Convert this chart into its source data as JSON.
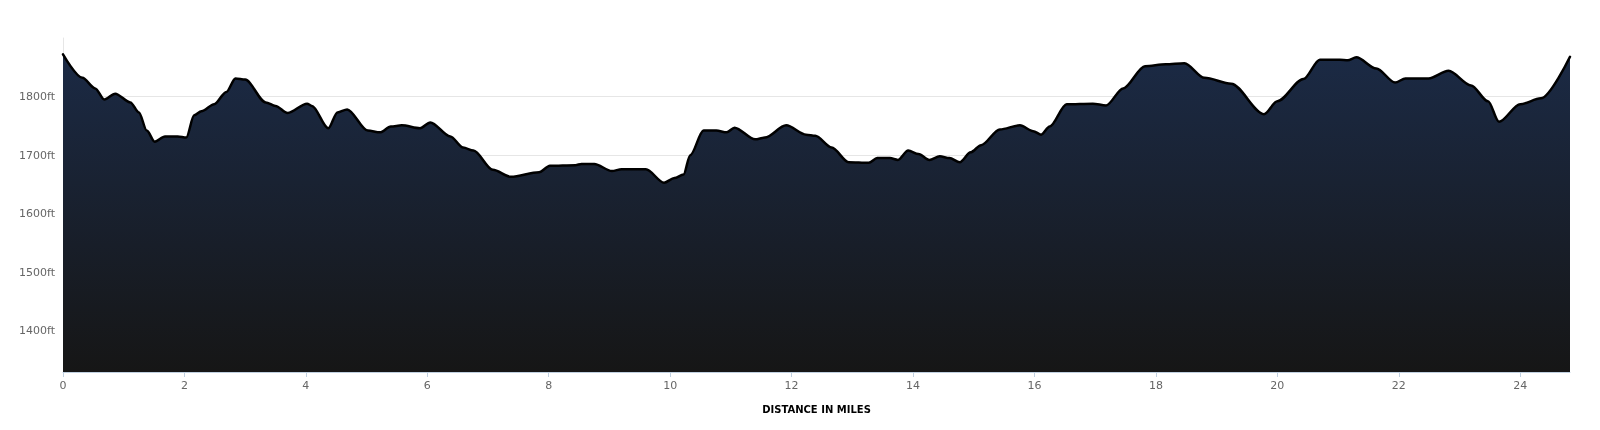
{
  "chart_data": {
    "type": "area",
    "xlabel": "DISTANCE IN MILES",
    "x": [
      0,
      0.32,
      0.53,
      0.68,
      0.86,
      1.11,
      1.25,
      1.38,
      1.51,
      1.68,
      1.89,
      2.03,
      2.16,
      2.28,
      2.49,
      2.69,
      2.84,
      3.0,
      3.34,
      3.5,
      3.7,
      4.02,
      4.1,
      4.37,
      4.52,
      4.68,
      5.02,
      5.22,
      5.4,
      5.58,
      5.88,
      6.05,
      6.38,
      6.59,
      6.76,
      7.08,
      7.38,
      7.84,
      8.02,
      8.44,
      8.54,
      8.75,
      9.04,
      9.2,
      9.6,
      9.9,
      10.07,
      10.22,
      10.33,
      10.55,
      10.76,
      10.93,
      11.06,
      11.4,
      11.56,
      11.91,
      12.24,
      12.39,
      12.66,
      12.94,
      13.27,
      13.41,
      13.62,
      13.75,
      13.92,
      14.09,
      14.27,
      14.44,
      14.6,
      14.77,
      14.95,
      15.12,
      15.43,
      15.76,
      15.98,
      16.11,
      16.25,
      16.53,
      16.96,
      17.18,
      17.46,
      17.82,
      18.16,
      18.47,
      18.8,
      19.24,
      19.78,
      20.0,
      20.43,
      20.7,
      21.03,
      21.16,
      21.3,
      21.63,
      21.94,
      22.11,
      22.49,
      22.82,
      23.19,
      23.47,
      23.65,
      24.0,
      24.34,
      24.82
    ],
    "series": [
      {
        "color": "#1b2a45",
        "values": [
          1872,
          1832,
          1814,
          1795,
          1805,
          1790,
          1773,
          1742,
          1723,
          1732,
          1732,
          1730,
          1768,
          1775,
          1787,
          1808,
          1831,
          1829,
          1790,
          1784,
          1772,
          1788,
          1784,
          1746,
          1773,
          1778,
          1742,
          1739,
          1749,
          1751,
          1746,
          1756,
          1732,
          1713,
          1708,
          1675,
          1663,
          1671,
          1682,
          1683,
          1685,
          1685,
          1673,
          1676,
          1676,
          1653,
          1661,
          1667,
          1700,
          1742,
          1742,
          1739,
          1747,
          1727,
          1730,
          1751,
          1735,
          1733,
          1713,
          1688,
          1687,
          1695,
          1695,
          1692,
          1708,
          1702,
          1692,
          1698,
          1695,
          1688,
          1705,
          1717,
          1744,
          1751,
          1741,
          1735,
          1749,
          1787,
          1788,
          1785,
          1814,
          1852,
          1855,
          1857,
          1832,
          1822,
          1770,
          1792,
          1830,
          1863,
          1863,
          1862,
          1867,
          1848,
          1824,
          1831,
          1831,
          1844,
          1819,
          1792,
          1757,
          1787,
          1797,
          1868
        ]
      }
    ],
    "xlim": [
      0,
      24.82
    ],
    "xticks": [
      0,
      2,
      4,
      6,
      8,
      10,
      12,
      14,
      16,
      18,
      20,
      22,
      24
    ],
    "ylim": [
      1330,
      1900
    ],
    "yticks": [
      {
        "value": 1400,
        "label": "1400ft"
      },
      {
        "value": 1500,
        "label": "1500ft"
      },
      {
        "value": 1600,
        "label": "1600ft"
      },
      {
        "value": 1700,
        "label": "1700ft"
      },
      {
        "value": 1800,
        "label": "1800ft"
      }
    ],
    "grid": "y",
    "marker": "none",
    "line_style": "solid"
  }
}
